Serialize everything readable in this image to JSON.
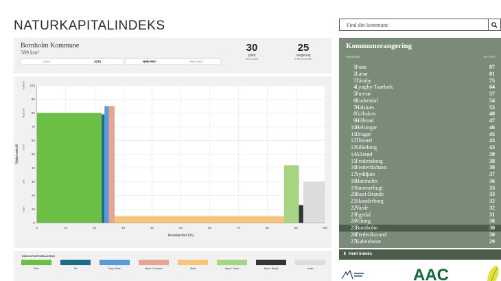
{
  "page": {
    "title": "NATURKAPITALINDEKS"
  },
  "search": {
    "placeholder": "Find din kommune",
    "icon": "search-icon"
  },
  "municipality": {
    "name": "Bornholm Kommune",
    "area": "589 km²",
    "years": [
      "2015",
      "2020"
    ],
    "selected_year": "2020",
    "types": [
      "Hele NKI",
      "Kun natur"
    ],
    "selected_type": "Hele NKI",
    "points": {
      "value": "30",
      "label": "point",
      "sub": "af 100 point"
    },
    "rank": {
      "value": "25",
      "label": "rangering",
      "sub": "af 98 kommuner"
    }
  },
  "chart_data": {
    "type": "bar",
    "xlabel": "Arealandel (%)",
    "ylabel": "Naturværdi",
    "xlim": [
      0,
      100
    ],
    "ylim": [
      0,
      100
    ],
    "x_ticks": [
      0,
      10,
      20,
      30,
      40,
      50,
      60,
      70,
      80,
      90,
      100
    ],
    "y_ticks": [
      0,
      10,
      20,
      30,
      40,
      50,
      60,
      70,
      80,
      90,
      100
    ],
    "y_categories": [
      "Ingen",
      "Lille",
      "Lokal",
      "Regional",
      "National"
    ],
    "series": [
      {
        "name": "Skov",
        "color": "#6bbf45",
        "x_start": 0,
        "x_end": 22.5,
        "value": 80
      },
      {
        "name": "Sø",
        "color": "#1e6d84",
        "x_start": 22.5,
        "x_end": 23.5,
        "value": 79
      },
      {
        "name": "Eng / Mose",
        "color": "#5b9ad6",
        "x_start": 23.5,
        "x_end": 25.0,
        "value": 85
      },
      {
        "name": "Hede / Overdrev",
        "color": "#e8a593",
        "x_start": 25.0,
        "x_end": 27.0,
        "value": 85
      },
      {
        "name": "Mark",
        "color": "#f6c57a",
        "x_start": 27.0,
        "x_end": 85.8,
        "value": 5
      },
      {
        "name": "Byen / Grønt",
        "color": "#a6d482",
        "x_start": 85.8,
        "x_end": 91.0,
        "value": 42
      },
      {
        "name": "Byen / Øvrigt",
        "color": "#2e3438",
        "x_start": 91.0,
        "x_end": 92.5,
        "value": 13
      },
      {
        "name": "Andet",
        "color": "#dcdcdc",
        "x_start": 92.5,
        "x_end": 100,
        "value": 30
      }
    ]
  },
  "legend": {
    "title": "BIDRAGTURFORKLARING"
  },
  "ranking": {
    "title": "Kommunerangering",
    "col_left": "RANGERING",
    "col_right": "NKI POINT",
    "rows": [
      {
        "rank": "1",
        "name": "Fanø",
        "points": "87"
      },
      {
        "rank": "2",
        "name": "Læsø",
        "points": "81"
      },
      {
        "rank": "3",
        "name": "Tårnby",
        "points": "75"
      },
      {
        "rank": "4",
        "name": "Lyngby-Taarbæk",
        "points": "64"
      },
      {
        "rank": "5",
        "name": "Furesø",
        "points": "57"
      },
      {
        "rank": "6",
        "name": "Rudersdal",
        "points": "54"
      },
      {
        "rank": "7",
        "name": "Halsnæs",
        "points": "53"
      },
      {
        "rank": "8",
        "name": "Gribskov",
        "points": "48"
      },
      {
        "rank": "9",
        "name": "Hillerød",
        "points": "47"
      },
      {
        "rank": "10",
        "name": "Helsingør",
        "points": "46"
      },
      {
        "rank": "11",
        "name": "Dragør",
        "points": "45"
      },
      {
        "rank": "12",
        "name": "Thisted",
        "points": "43"
      },
      {
        "rank": "13",
        "name": "Silkeborg",
        "points": "43"
      },
      {
        "rank": "14",
        "name": "Allerød",
        "points": "39"
      },
      {
        "rank": "15",
        "name": "Fredensborg",
        "points": "38"
      },
      {
        "rank": "16",
        "name": "Frederikshavn",
        "points": "38"
      },
      {
        "rank": "17",
        "name": "Syddjurs",
        "points": "37"
      },
      {
        "rank": "18",
        "name": "Hørsholm",
        "points": "36"
      },
      {
        "rank": "19",
        "name": "Jammerbugt",
        "points": "33"
      },
      {
        "rank": "20",
        "name": "Ikast-Brande",
        "points": "33"
      },
      {
        "rank": "21",
        "name": "Skanderborg",
        "points": "32"
      },
      {
        "rank": "22",
        "name": "Varde",
        "points": "32"
      },
      {
        "rank": "23",
        "name": "Egedal",
        "points": "31"
      },
      {
        "rank": "24",
        "name": "Viborg",
        "points": "30"
      },
      {
        "rank": "25",
        "name": "Bornholm",
        "points": "30",
        "highlight": true
      },
      {
        "rank": "26",
        "name": "Frederikssund",
        "points": "30"
      },
      {
        "rank": "27",
        "name": "København",
        "points": "29"
      }
    ]
  },
  "download": {
    "label": "Hent indeks"
  },
  "logos": {
    "text": "AAC"
  }
}
